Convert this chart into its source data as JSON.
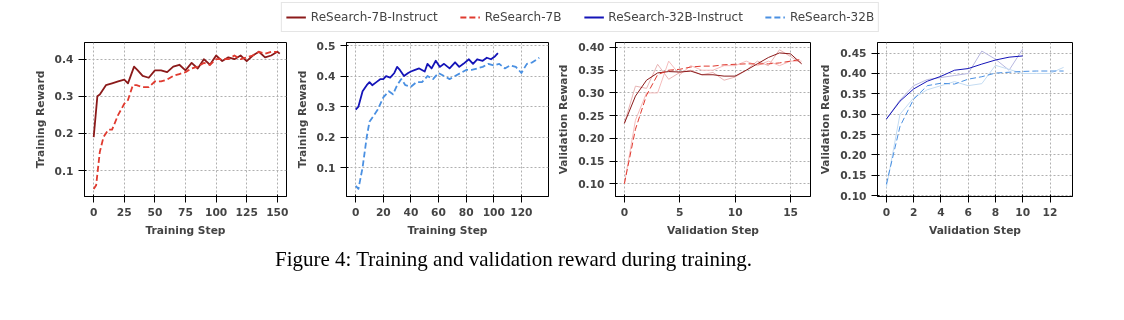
{
  "chart_data": [
    {
      "type": "line",
      "xlabel": "Training Step",
      "ylabel": "Training Reward",
      "xlim": [
        -7.5,
        157.5
      ],
      "ylim": [
        0.03,
        0.445
      ],
      "xticks": [
        0,
        25,
        50,
        75,
        100,
        125,
        150
      ],
      "yticks": [
        0.1,
        0.2,
        0.3,
        0.4
      ],
      "grid": true,
      "legend": "top",
      "annotations": [
        "Figure 4: Training and validation reward during training."
      ],
      "series": [
        {
          "name": "ReSearch-7B-Instruct",
          "color": "#8b1a1a",
          "line_style": "solid",
          "x": [
            0,
            3,
            5,
            10,
            15,
            20,
            25,
            28,
            33,
            36,
            40,
            45,
            50,
            55,
            60,
            65,
            70,
            75,
            80,
            85,
            90,
            95,
            100,
            105,
            110,
            115,
            120,
            125,
            130,
            135,
            140,
            145,
            150,
            152
          ],
          "values": [
            0.19,
            0.3,
            0.305,
            0.33,
            0.335,
            0.34,
            0.345,
            0.335,
            0.38,
            0.37,
            0.355,
            0.35,
            0.37,
            0.37,
            0.365,
            0.38,
            0.385,
            0.37,
            0.39,
            0.375,
            0.4,
            0.385,
            0.41,
            0.395,
            0.405,
            0.4,
            0.41,
            0.395,
            0.41,
            0.42,
            0.405,
            0.41,
            0.42,
            0.415
          ]
        },
        {
          "name": "ReSearch-7B",
          "color": "#e03a2f",
          "line_style": "dashed",
          "x": [
            0,
            2,
            5,
            8,
            12,
            15,
            20,
            25,
            28,
            32,
            35,
            40,
            45,
            50,
            55,
            60,
            65,
            70,
            75,
            80,
            85,
            90,
            95,
            100,
            105,
            110,
            115,
            120,
            125,
            130,
            135,
            140,
            145,
            150
          ],
          "values": [
            0.05,
            0.06,
            0.15,
            0.19,
            0.21,
            0.21,
            0.25,
            0.28,
            0.29,
            0.33,
            0.33,
            0.325,
            0.325,
            0.34,
            0.34,
            0.345,
            0.355,
            0.36,
            0.365,
            0.375,
            0.38,
            0.39,
            0.385,
            0.4,
            0.4,
            0.4,
            0.41,
            0.4,
            0.405,
            0.41,
            0.42,
            0.415,
            0.42,
            0.42
          ]
        }
      ]
    },
    {
      "type": "line",
      "xlabel": "Training Step",
      "ylabel": "Training Reward",
      "xlim": [
        -6.65,
        139.65
      ],
      "ylim": [
        0.005,
        0.51
      ],
      "xticks": [
        0,
        20,
        40,
        60,
        80,
        100,
        120
      ],
      "yticks": [
        0.1,
        0.2,
        0.3,
        0.4,
        0.5
      ],
      "grid": true,
      "legend": "top",
      "series": [
        {
          "name": "ReSearch-32B-Instruct",
          "color": "#1414b8",
          "line_style": "solid",
          "x": [
            0,
            2,
            5,
            8,
            10,
            12,
            15,
            18,
            20,
            22,
            25,
            28,
            30,
            32,
            35,
            38,
            40,
            43,
            46,
            50,
            52,
            55,
            58,
            61,
            64,
            68,
            72,
            75,
            78,
            82,
            85,
            88,
            92,
            95,
            98,
            101,
            103
          ],
          "values": [
            0.29,
            0.3,
            0.35,
            0.37,
            0.38,
            0.37,
            0.38,
            0.39,
            0.39,
            0.4,
            0.395,
            0.41,
            0.43,
            0.42,
            0.4,
            0.41,
            0.415,
            0.42,
            0.425,
            0.415,
            0.44,
            0.425,
            0.45,
            0.43,
            0.44,
            0.425,
            0.445,
            0.43,
            0.44,
            0.455,
            0.44,
            0.455,
            0.45,
            0.46,
            0.455,
            0.465,
            0.475
          ]
        },
        {
          "name": "ReSearch-32B",
          "color": "#4a90e2",
          "line_style": "dashed",
          "x": [
            0,
            2,
            5,
            8,
            10,
            13,
            16,
            20,
            24,
            27,
            30,
            33,
            36,
            40,
            44,
            48,
            52,
            56,
            60,
            64,
            68,
            72,
            76,
            80,
            84,
            88,
            92,
            96,
            100,
            104,
            108,
            112,
            116,
            120,
            124,
            128,
            133
          ],
          "values": [
            0.04,
            0.03,
            0.1,
            0.2,
            0.25,
            0.27,
            0.29,
            0.33,
            0.35,
            0.34,
            0.37,
            0.39,
            0.37,
            0.365,
            0.38,
            0.38,
            0.4,
            0.39,
            0.41,
            0.4,
            0.39,
            0.4,
            0.41,
            0.42,
            0.42,
            0.425,
            0.43,
            0.44,
            0.435,
            0.44,
            0.425,
            0.435,
            0.43,
            0.41,
            0.44,
            0.445,
            0.46
          ]
        }
      ]
    },
    {
      "type": "line",
      "xlabel": "Validation Step",
      "ylabel": "Validation Reward",
      "xlim": [
        -0.8,
        16.8
      ],
      "ylim": [
        0.072,
        0.411
      ],
      "xticks": [
        0,
        5,
        10,
        15
      ],
      "yticks": [
        {
          "value": 0.1,
          "label": "0.10"
        },
        {
          "value": 0.15,
          "label": "0.15"
        },
        {
          "value": 0.2,
          "label": "0.20"
        },
        {
          "value": 0.25,
          "label": "0.25"
        },
        {
          "value": 0.3,
          "label": "0.30"
        },
        {
          "value": 0.35,
          "label": "0.35"
        },
        {
          "value": 0.4,
          "label": "0.40"
        }
      ],
      "grid": true,
      "series": [
        {
          "color": "#e8b4b4",
          "line_style": "solid",
          "x": [
            0,
            1,
            2,
            3,
            4,
            5,
            6,
            7,
            8,
            9,
            10,
            11,
            12,
            13,
            14,
            15,
            16
          ],
          "values": [
            0.233,
            0.315,
            0.31,
            0.363,
            0.33,
            0.345,
            0.35,
            0.34,
            0.345,
            0.328,
            0.335,
            0.35,
            0.37,
            0.36,
            0.395,
            0.38,
            0.365
          ]
        },
        {
          "color": "#f5bcbc",
          "line_style": "solid",
          "x": [
            0,
            1,
            2,
            3,
            4,
            5,
            6,
            7,
            8,
            9,
            10,
            11,
            12,
            13,
            14,
            15,
            16
          ],
          "values": [
            0.1,
            0.24,
            0.3,
            0.3,
            0.37,
            0.34,
            0.36,
            0.35,
            0.35,
            0.36,
            0.36,
            0.37,
            0.36,
            0.37,
            0.36,
            0.37,
            0.37
          ]
        },
        {
          "color": "#8b1a1a",
          "line_style": "solid",
          "x": [
            0,
            1,
            2,
            3,
            4,
            5,
            6,
            7,
            8,
            9,
            10,
            11,
            12,
            13,
            14,
            15,
            16
          ],
          "values": [
            0.233,
            0.293,
            0.328,
            0.344,
            0.347,
            0.346,
            0.348,
            0.34,
            0.34,
            0.337,
            0.337,
            0.35,
            0.364,
            0.378,
            0.388,
            0.386,
            0.364
          ]
        },
        {
          "color": "#e03a2f",
          "line_style": "dashed",
          "x": [
            0,
            1,
            2,
            3,
            4,
            5,
            6,
            7,
            8,
            9,
            10,
            11,
            12,
            13,
            14,
            15,
            16
          ],
          "values": [
            0.1,
            0.22,
            0.295,
            0.34,
            0.35,
            0.352,
            0.357,
            0.359,
            0.359,
            0.362,
            0.363,
            0.364,
            0.364,
            0.364,
            0.366,
            0.37,
            0.374
          ]
        }
      ]
    },
    {
      "type": "line",
      "xlabel": "Validation Step",
      "ylabel": "Validation Reward",
      "xlim": [
        -0.65,
        13.65
      ],
      "ylim": [
        0.098,
        0.476
      ],
      "xticks": [
        0,
        2,
        4,
        6,
        8,
        10,
        12
      ],
      "yticks": [
        {
          "value": 0.1,
          "label": "0.10"
        },
        {
          "value": 0.15,
          "label": "0.15"
        },
        {
          "value": 0.2,
          "label": "0.20"
        },
        {
          "value": 0.25,
          "label": "0.25"
        },
        {
          "value": 0.3,
          "label": "0.30"
        },
        {
          "value": 0.35,
          "label": "0.35"
        },
        {
          "value": 0.4,
          "label": "0.40"
        },
        {
          "value": 0.45,
          "label": "0.45"
        }
      ],
      "grid": true,
      "series": [
        {
          "color": "#b8b8e0",
          "line_style": "solid",
          "x": [
            0,
            1,
            2,
            3,
            4,
            5,
            6,
            7,
            8,
            9,
            10
          ],
          "values": [
            0.288,
            0.335,
            0.37,
            0.385,
            0.39,
            0.395,
            0.4,
            0.455,
            0.435,
            0.408,
            0.46
          ]
        },
        {
          "color": "#c4dcf2",
          "line_style": "solid",
          "x": [
            0,
            1,
            2,
            3,
            4,
            5,
            6,
            7,
            8,
            9,
            10,
            11,
            12,
            13
          ],
          "values": [
            0.12,
            0.3,
            0.34,
            0.36,
            0.37,
            0.38,
            0.37,
            0.375,
            0.42,
            0.41,
            0.4,
            0.4,
            0.4,
            0.415
          ]
        },
        {
          "color": "#1414b8",
          "line_style": "solid",
          "x": [
            0,
            1,
            2,
            3,
            4,
            5,
            6,
            7,
            8,
            9,
            10
          ],
          "values": [
            0.288,
            0.332,
            0.362,
            0.381,
            0.393,
            0.408,
            0.412,
            0.423,
            0.433,
            0.44,
            0.443
          ]
        },
        {
          "color": "#4a90e2",
          "line_style": "dashed",
          "x": [
            0,
            1,
            2,
            3,
            4,
            5,
            6,
            7,
            8,
            9,
            10,
            11,
            12,
            13
          ],
          "values": [
            0.128,
            0.27,
            0.337,
            0.37,
            0.376,
            0.374,
            0.386,
            0.392,
            0.401,
            0.403,
            0.405,
            0.406,
            0.406,
            0.406
          ]
        }
      ]
    }
  ]
}
